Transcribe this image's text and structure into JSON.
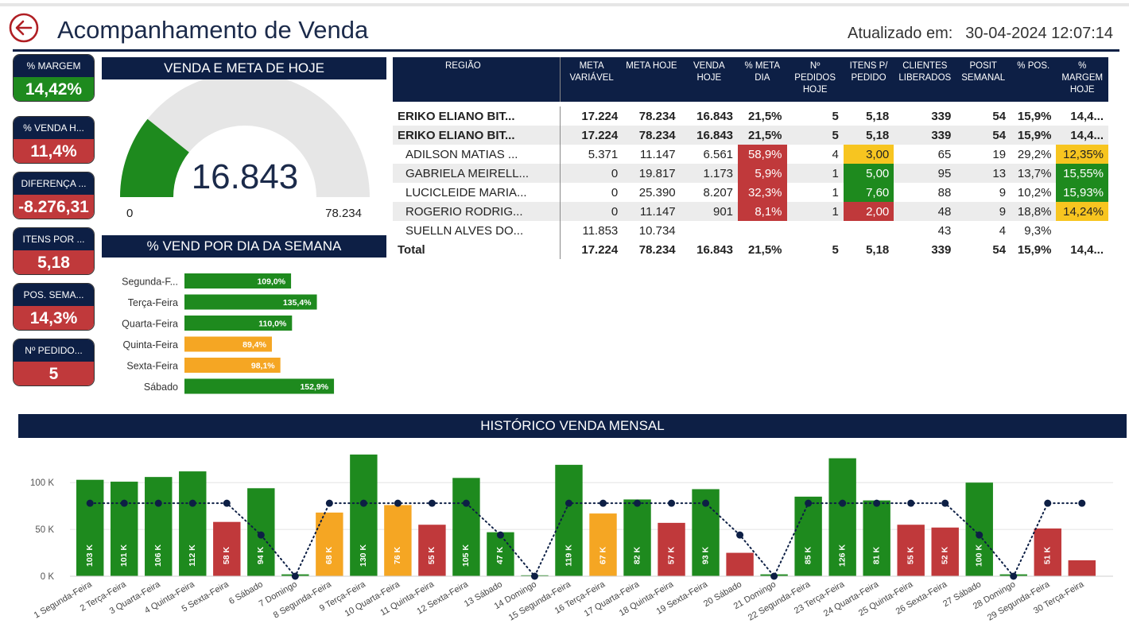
{
  "header": {
    "title": "Acompanhamento de Venda",
    "updated_label": "Atualizado em:",
    "updated_value": "30-04-2024 12:07:14"
  },
  "kpis": [
    {
      "label": "% MARGEM",
      "value": "14,42%",
      "status": "green"
    },
    {
      "label": "% VENDA H...",
      "value": "11,4%",
      "status": "red"
    },
    {
      "label": "DIFERENÇA ...",
      "value": "-8.276,31",
      "status": "red"
    },
    {
      "label": "ITENS POR ...",
      "value": "5,18",
      "status": "red"
    },
    {
      "label": "POS. SEMA...",
      "value": "14,3%",
      "status": "red"
    },
    {
      "label": "Nº PEDIDO...",
      "value": "5",
      "status": "red"
    }
  ],
  "gauge": {
    "title": "VENDA E META DE HOJE",
    "value": 16843,
    "value_label": "16.843",
    "min": 0,
    "min_label": "0",
    "max": 78234,
    "max_label": "78.234",
    "fill_color": "#1e8a1e",
    "track_color": "#e6e6e6"
  },
  "table": {
    "headers": [
      "REGIÃO",
      "META VARIÁVEL",
      "META HOJE",
      "VENDA HOJE",
      "% META DIA",
      "Nº PEDIDOS HOJE",
      "ITENS P/ PEDIDO",
      "CLIENTES LIBERADOS",
      "POSIT SEMANAL",
      "% POS.",
      "% MARGEM HOJE"
    ],
    "rows": [
      {
        "cells": [
          "ERIKO ELIANO BIT...",
          "17.224",
          "78.234",
          "16.843",
          "21,5%",
          "5",
          "5,18",
          "339",
          "54",
          "15,9%",
          "14,4..."
        ],
        "bold": true,
        "alt": false,
        "indent": false,
        "colors": [
          "",
          "",
          "",
          "",
          "",
          "",
          "",
          "",
          "",
          "",
          ""
        ]
      },
      {
        "cells": [
          "ERIKO ELIANO BIT...",
          "17.224",
          "78.234",
          "16.843",
          "21,5%",
          "5",
          "5,18",
          "339",
          "54",
          "15,9%",
          "14,4..."
        ],
        "bold": true,
        "alt": true,
        "indent": false,
        "colors": [
          "",
          "",
          "",
          "",
          "",
          "",
          "",
          "",
          "",
          "",
          ""
        ]
      },
      {
        "cells": [
          "ADILSON MATIAS ...",
          "5.371",
          "11.147",
          "6.561",
          "58,9%",
          "4",
          "3,00",
          "65",
          "19",
          "29,2%",
          "12,35%"
        ],
        "bold": false,
        "alt": false,
        "indent": true,
        "colors": [
          "",
          "",
          "",
          "",
          "cr",
          "",
          "cy",
          "",
          "",
          "",
          "cy"
        ]
      },
      {
        "cells": [
          "GABRIELA MEIRELL...",
          "0",
          "19.817",
          "1.173",
          "5,9%",
          "1",
          "5,00",
          "95",
          "13",
          "13,7%",
          "15,55%"
        ],
        "bold": false,
        "alt": true,
        "indent": true,
        "colors": [
          "",
          "",
          "",
          "",
          "cr",
          "",
          "cg",
          "",
          "",
          "",
          "cg"
        ]
      },
      {
        "cells": [
          "LUCICLEIDE MARIA...",
          "0",
          "25.390",
          "8.207",
          "32,3%",
          "1",
          "7,60",
          "88",
          "9",
          "10,2%",
          "15,93%"
        ],
        "bold": false,
        "alt": false,
        "indent": true,
        "colors": [
          "",
          "",
          "",
          "",
          "cr",
          "",
          "cg",
          "",
          "",
          "",
          "cg"
        ]
      },
      {
        "cells": [
          "ROGERIO RODRIG...",
          "0",
          "11.147",
          "901",
          "8,1%",
          "1",
          "2,00",
          "48",
          "9",
          "18,8%",
          "14,24%"
        ],
        "bold": false,
        "alt": true,
        "indent": true,
        "colors": [
          "",
          "",
          "",
          "",
          "cr",
          "",
          "cr",
          "",
          "",
          "",
          "cy"
        ]
      },
      {
        "cells": [
          "SUELLN ALVES DO...",
          "11.853",
          "10.734",
          "",
          "",
          "",
          "",
          "43",
          "4",
          "9,3%",
          ""
        ],
        "bold": false,
        "alt": false,
        "indent": true,
        "colors": [
          "",
          "",
          "",
          "",
          "",
          "",
          "",
          "",
          "",
          "",
          ""
        ]
      },
      {
        "cells": [
          "Total",
          "17.224",
          "78.234",
          "16.843",
          "21,5%",
          "5",
          "5,18",
          "339",
          "54",
          "15,9%",
          "14,4..."
        ],
        "bold": true,
        "alt": false,
        "indent": false,
        "colors": [
          "",
          "",
          "",
          "",
          "",
          "",
          "",
          "",
          "",
          "",
          ""
        ]
      }
    ]
  },
  "chart_data": [
    {
      "type": "bar",
      "orientation": "horizontal",
      "title": "% VEND POR DIA DA SEMANA",
      "categories": [
        "Segunda-F...",
        "Terça-Feira",
        "Quarta-Feira",
        "Quinta-Feira",
        "Sexta-Feira",
        "Sábado"
      ],
      "values": [
        109.0,
        135.4,
        110.0,
        89.4,
        98.1,
        152.9
      ],
      "data_labels": [
        "109,0%",
        "135,4%",
        "110,0%",
        "89,4%",
        "98,1%",
        "152,9%"
      ],
      "colors": [
        "#1e8a1e",
        "#1e8a1e",
        "#1e8a1e",
        "#f5a623",
        "#f5a623",
        "#1e8a1e"
      ],
      "xlim": [
        0,
        200
      ]
    },
    {
      "type": "bar",
      "title": "HISTÓRICO VENDA MENSAL",
      "categories": [
        "1 Segunda-Feira",
        "2 Terça-Feira",
        "3 Quarta-Feira",
        "4 Quinta-Feira",
        "5 Sexta-Feira",
        "6 Sábado",
        "7 Domingo",
        "8 Segunda-Feira",
        "9 Terça-Feira",
        "10 Quarta-Feira",
        "11 Quinta-Feira",
        "12 Sexta-Feira",
        "13 Sábado",
        "14 Domingo",
        "15 Segunda-Feira",
        "16 Terça-Feira",
        "17 Quarta-Feira",
        "18 Quinta-Feira",
        "19 Sexta-Feira",
        "20 Sábado",
        "21 Domingo",
        "22 Segunda-Feira",
        "23 Terça-Feira",
        "24 Quarta-Feira",
        "25 Quinta-Feira",
        "26 Sexta-Feira",
        "27 Sábado",
        "28 Domingo",
        "29 Segunda-Feira",
        "30 Terça-Feira"
      ],
      "series": [
        {
          "type": "bar",
          "values": [
            103,
            101,
            106,
            112,
            58,
            94,
            2,
            68,
            130,
            76,
            55,
            105,
            47,
            1,
            119,
            67,
            82,
            57,
            93,
            25,
            2,
            85,
            126,
            81,
            55,
            52,
            100,
            2,
            51,
            17
          ],
          "data_labels": [
            "103 K",
            "101 K",
            "106 K",
            "112 K",
            "58 K",
            "94 K",
            "",
            "68 K",
            "130 K",
            "76 K",
            "55 K",
            "105 K",
            "47 K",
            "",
            "119 K",
            "67 K",
            "82 K",
            "57 K",
            "93 K",
            "",
            "",
            "85 K",
            "126 K",
            "81 K",
            "55 K",
            "52 K",
            "100 K",
            "",
            "51 K",
            ""
          ],
          "colors": [
            "#1e8a1e",
            "#1e8a1e",
            "#1e8a1e",
            "#1e8a1e",
            "#c0393b",
            "#1e8a1e",
            "#1e8a1e",
            "#f5a623",
            "#1e8a1e",
            "#f5a623",
            "#c0393b",
            "#1e8a1e",
            "#1e8a1e",
            "#1e8a1e",
            "#1e8a1e",
            "#f5a623",
            "#1e8a1e",
            "#c0393b",
            "#1e8a1e",
            "#c0393b",
            "#1e8a1e",
            "#1e8a1e",
            "#1e8a1e",
            "#1e8a1e",
            "#c0393b",
            "#c0393b",
            "#1e8a1e",
            "#1e8a1e",
            "#c0393b",
            "#c0393b"
          ]
        },
        {
          "type": "line",
          "style": "dotted",
          "values": [
            78,
            78,
            78,
            78,
            78,
            44,
            0,
            78,
            78,
            78,
            78,
            78,
            44,
            0,
            78,
            78,
            78,
            78,
            78,
            44,
            0,
            78,
            78,
            78,
            78,
            78,
            44,
            0,
            78,
            78
          ],
          "color": "#0d1f45"
        }
      ],
      "yticks": [
        0,
        50,
        100
      ],
      "ytick_labels": [
        "0 K",
        "50 K",
        "100 K"
      ],
      "ylim": [
        0,
        135
      ],
      "grid": true
    }
  ]
}
